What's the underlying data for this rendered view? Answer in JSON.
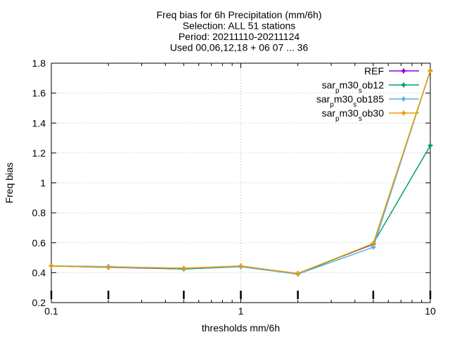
{
  "chart_data": {
    "type": "line",
    "title_lines": [
      "Freq bias  for 6h Precipitation (mm/6h)",
      "Selection: ALL      51 stations",
      "Period: 20211110-20211124",
      "Used 00,06,12,18 + 06 07 ... 36"
    ],
    "xlabel": "thresholds mm/6h",
    "ylabel": "Freq bias",
    "x_scale": "log",
    "xlim": [
      0.1,
      10
    ],
    "ylim": [
      0.2,
      1.8
    ],
    "x_ticks": [
      {
        "value": 0.1,
        "label": "0.1"
      },
      {
        "value": 1,
        "label": "1"
      },
      {
        "value": 10,
        "label": "10"
      }
    ],
    "y_ticks": [
      {
        "value": 0.2,
        "label": "0.2"
      },
      {
        "value": 0.4,
        "label": "0.4"
      },
      {
        "value": 0.6,
        "label": "0.6"
      },
      {
        "value": 0.8,
        "label": "0.8"
      },
      {
        "value": 1.0,
        "label": "1"
      },
      {
        "value": 1.2,
        "label": "1.2"
      },
      {
        "value": 1.4,
        "label": "1.4"
      },
      {
        "value": 1.6,
        "label": "1.6"
      },
      {
        "value": 1.8,
        "label": "1.8"
      }
    ],
    "grid": true,
    "legend_position": "top-right",
    "x": [
      0.1,
      0.2,
      0.5,
      1,
      2,
      5,
      10
    ],
    "series": [
      {
        "name_base": "REF",
        "name_sub": "",
        "name_tail": "",
        "color": "#9400d3",
        "values": [
          0.445,
          0.435,
          0.425,
          0.44,
          0.395,
          0.59,
          1.75
        ]
      },
      {
        "name_base": "sar",
        "name_sub": "p",
        "name_mid": "m30",
        "name_sub2": "s",
        "name_tail": "ob12",
        "color": "#009e73",
        "values": [
          0.445,
          0.44,
          0.425,
          0.44,
          0.39,
          0.595,
          1.25
        ]
      },
      {
        "name_base": "sar",
        "name_sub": "p",
        "name_mid": "m30",
        "name_sub2": "s",
        "name_tail": "ob185",
        "color": "#56b4e9",
        "values": [
          0.445,
          0.44,
          0.43,
          0.44,
          0.39,
          0.57,
          1.75
        ]
      },
      {
        "name_base": "sar",
        "name_sub": "p",
        "name_mid": "m30",
        "name_sub2": "s",
        "name_tail": "ob30",
        "color": "#e69f00",
        "values": [
          0.445,
          0.435,
          0.43,
          0.445,
          0.395,
          0.595,
          1.75
        ]
      }
    ],
    "marker_x": [
      0.1,
      0.2,
      0.5,
      1,
      2,
      5,
      10
    ]
  }
}
